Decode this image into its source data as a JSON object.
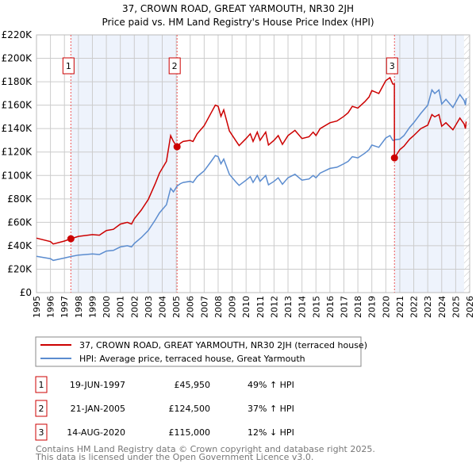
{
  "chart_data": {
    "type": "line",
    "title": "37, CROWN ROAD, GREAT YARMOUTH, NR30 2JH",
    "subtitle": "Price paid vs. HM Land Registry's House Price Index (HPI)",
    "xlabel": "",
    "ylabel": "",
    "xlim": [
      1995,
      2026
    ],
    "ylim": [
      0,
      220000
    ],
    "grid": true,
    "x_ticks": [
      "1995",
      "1996",
      "1997",
      "1998",
      "1999",
      "2000",
      "2001",
      "2002",
      "2003",
      "2004",
      "2005",
      "2006",
      "2007",
      "2008",
      "2009",
      "2010",
      "2011",
      "2012",
      "2013",
      "2014",
      "2015",
      "2016",
      "2017",
      "2018",
      "2019",
      "2020",
      "2021",
      "2022",
      "2023",
      "2024",
      "2025",
      "2026"
    ],
    "y_ticks": [
      {
        "value": 0,
        "label": "£0"
      },
      {
        "value": 20000,
        "label": "£20K"
      },
      {
        "value": 40000,
        "label": "£40K"
      },
      {
        "value": 60000,
        "label": "£60K"
      },
      {
        "value": 80000,
        "label": "£80K"
      },
      {
        "value": 100000,
        "label": "£100K"
      },
      {
        "value": 120000,
        "label": "£120K"
      },
      {
        "value": 140000,
        "label": "£140K"
      },
      {
        "value": 160000,
        "label": "£160K"
      },
      {
        "value": 180000,
        "label": "£180K"
      },
      {
        "value": 200000,
        "label": "£200K"
      },
      {
        "value": 220000,
        "label": "£220K"
      }
    ],
    "x": [
      1995.0,
      1996.0,
      1996.2,
      1997.0,
      1997.46,
      1998.0,
      1999.0,
      1999.5,
      2000.0,
      2000.5,
      2001.0,
      2001.5,
      2001.8,
      2002.0,
      2002.5,
      2003.0,
      2003.5,
      2003.8,
      2004.3,
      2004.6,
      2004.8,
      2005.06,
      2005.3,
      2005.5,
      2006.0,
      2006.2,
      2006.5,
      2007.0,
      2007.5,
      2007.8,
      2008.0,
      2008.2,
      2008.4,
      2008.8,
      2009.3,
      2009.5,
      2010.0,
      2010.3,
      2010.5,
      2010.8,
      2011.0,
      2011.4,
      2011.6,
      2012.0,
      2012.3,
      2012.6,
      2013.0,
      2013.5,
      2014.0,
      2014.5,
      2014.8,
      2015.0,
      2015.3,
      2016.0,
      2016.5,
      2017.0,
      2017.3,
      2017.6,
      2018.0,
      2018.5,
      2018.8,
      2019.0,
      2019.5,
      2020.0,
      2020.3,
      2020.5,
      2020.61,
      2020.62,
      2021.0,
      2021.3,
      2021.7,
      2022.0,
      2022.5,
      2023.0,
      2023.3,
      2023.5,
      2023.8,
      2024.0,
      2024.3,
      2024.8,
      2025.3,
      2025.6,
      2025.7,
      2025.75
    ],
    "series": [
      {
        "name": "37, CROWN ROAD, GREAT YARMOUTH, NR30 2JH (terraced house)",
        "color": "#cc0000",
        "values": [
          46500,
          43500,
          41500,
          44000,
          45950,
          48000,
          49500,
          49000,
          53000,
          54000,
          58500,
          60000,
          58500,
          63000,
          70500,
          79500,
          93000,
          102000,
          112000,
          134000,
          129000,
          124500,
          127500,
          129000,
          130000,
          129000,
          135500,
          142500,
          153500,
          160000,
          159000,
          150500,
          156000,
          138000,
          129000,
          125500,
          131500,
          135500,
          129000,
          137000,
          130000,
          137000,
          126000,
          130000,
          134000,
          126500,
          134000,
          138500,
          131500,
          133000,
          137000,
          134000,
          140000,
          145000,
          146500,
          150500,
          153500,
          159000,
          157500,
          163000,
          167000,
          172500,
          170000,
          181000,
          183500,
          178000,
          178000,
          115000,
          122000,
          125000,
          131000,
          134000,
          140000,
          143000,
          152000,
          150000,
          152000,
          142000,
          145000,
          139000,
          149000,
          144000,
          140000,
          146000
        ]
      },
      {
        "name": "HPI: Average price, terraced house, Great Yarmouth",
        "color": "#5b8ccf",
        "values": [
          31000,
          29000,
          27500,
          29500,
          30800,
          32000,
          33000,
          32500,
          35500,
          36000,
          39000,
          40000,
          39000,
          42000,
          47000,
          53000,
          62000,
          68000,
          75000,
          89000,
          86000,
          91000,
          93000,
          94000,
          95000,
          94000,
          99000,
          104000,
          112000,
          117000,
          116000,
          110000,
          114000,
          101000,
          94000,
          91500,
          96000,
          99000,
          94000,
          100000,
          95000,
          100000,
          92000,
          95000,
          98000,
          92500,
          98000,
          101000,
          96000,
          97000,
          100000,
          98000,
          102000,
          106000,
          107000,
          110000,
          112000,
          116000,
          115000,
          119000,
          122000,
          126000,
          124000,
          132000,
          134000,
          130000,
          130000,
          130500,
          131000,
          134000,
          141000,
          145000,
          153000,
          160000,
          173000,
          170000,
          173000,
          161000,
          165000,
          158000,
          169000,
          164000,
          160000,
          166000
        ]
      }
    ],
    "legend": {
      "placement": "bottom"
    },
    "shaded_periods": [
      [
        1997.46,
        2005.06
      ],
      [
        2020.62,
        2025.6
      ]
    ],
    "hatched_period": [
      2025.6,
      2026
    ],
    "sales": [
      {
        "num": "1",
        "x": 1997.46,
        "value": 45950,
        "date": "19-JUN-1997",
        "price": "£45,950",
        "hpi": "49% ↑ HPI"
      },
      {
        "num": "2",
        "x": 2005.06,
        "value": 124500,
        "date": "21-JAN-2005",
        "price": "£124,500",
        "hpi": "37% ↑ HPI"
      },
      {
        "num": "3",
        "x": 2020.62,
        "value": 115000,
        "date": "14-AUG-2020",
        "price": "£115,000",
        "hpi": "12% ↓ HPI"
      }
    ]
  },
  "footer": {
    "line1": "Contains HM Land Registry data © Crown copyright and database right 2025.",
    "line2": "This data is licensed under the Open Government Licence v3.0."
  }
}
